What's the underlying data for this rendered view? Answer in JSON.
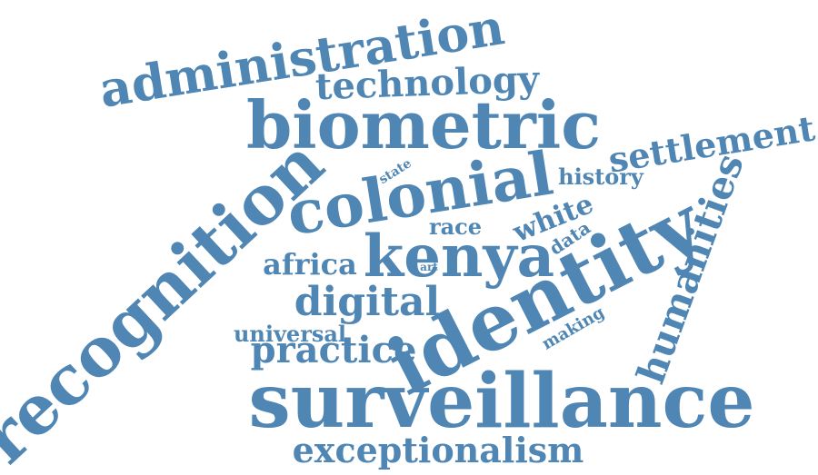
{
  "colors": {
    "word": "#4f86b4",
    "background": "#ffffff"
  },
  "words": {
    "surveillance": "surveillance",
    "recognition": "recognition",
    "identity": "identity",
    "biometric": "biometric",
    "colonial": "colonial",
    "kenya": "kenya",
    "administration": "administration",
    "technology": "technology",
    "settlement": "settlement",
    "humanities": "humanities",
    "digital": "digital",
    "practice": "practice",
    "exceptionalism": "exceptionalism",
    "white": "white",
    "race": "race",
    "africa": "africa",
    "history": "history",
    "data": "data",
    "state": "state",
    "art": "art",
    "universal": "universal",
    "making": "making"
  }
}
